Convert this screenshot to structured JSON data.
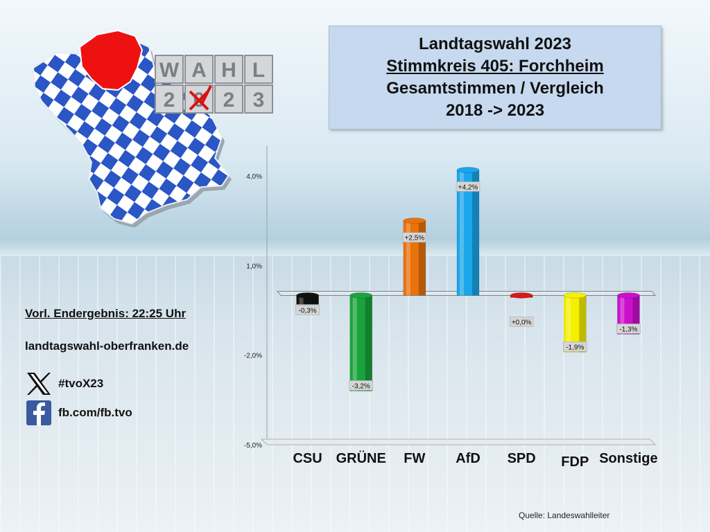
{
  "title": {
    "line1": "Landtagswahl 2023",
    "line2": "Stimmkreis 405: Forchheim",
    "line3": "Gesamtstimmen / Vergleich",
    "line4": "2018 -> 2023"
  },
  "logo": {
    "letters_top": [
      "W",
      "A",
      "H",
      "L"
    ],
    "letters_bottom": [
      "2",
      "0",
      "2",
      "3"
    ],
    "map_fill": "#2a56c6",
    "region_fill": "#ee1111"
  },
  "info": {
    "result_time": "Vorl. Endergebnis: 22:25 Uhr",
    "website": "landtagswahl-oberfranken.de",
    "x_handle": "#tvoX23",
    "fb_handle": "fb.com/fb.tvo"
  },
  "source": "Quelle: Landeswahlleiter",
  "chart_data": {
    "type": "bar",
    "categories": [
      "CSU",
      "GRÜNE",
      "FW",
      "AfD",
      "SPD",
      "FDP",
      "Sonstige"
    ],
    "values": [
      -0.3,
      -3.2,
      2.5,
      4.2,
      0.0,
      -1.9,
      -1.3
    ],
    "data_labels": [
      "-0,3%",
      "-3,2%",
      "+2,5%",
      "+4,2%",
      "+0,0%",
      "-1,9%",
      "-1,3%"
    ],
    "colors": [
      "#111111",
      "#1aa33c",
      "#e8720c",
      "#1aa6ea",
      "#d81818",
      "#f4f000",
      "#cc10cc"
    ],
    "y_ticks": [
      4.0,
      1.0,
      -2.0,
      -5.0
    ],
    "y_tick_labels": [
      "4,0%",
      "1,0%",
      "-2,0%",
      "-5,0%"
    ],
    "ylim": [
      -5,
      4
    ],
    "grid": false,
    "legend": "none"
  }
}
